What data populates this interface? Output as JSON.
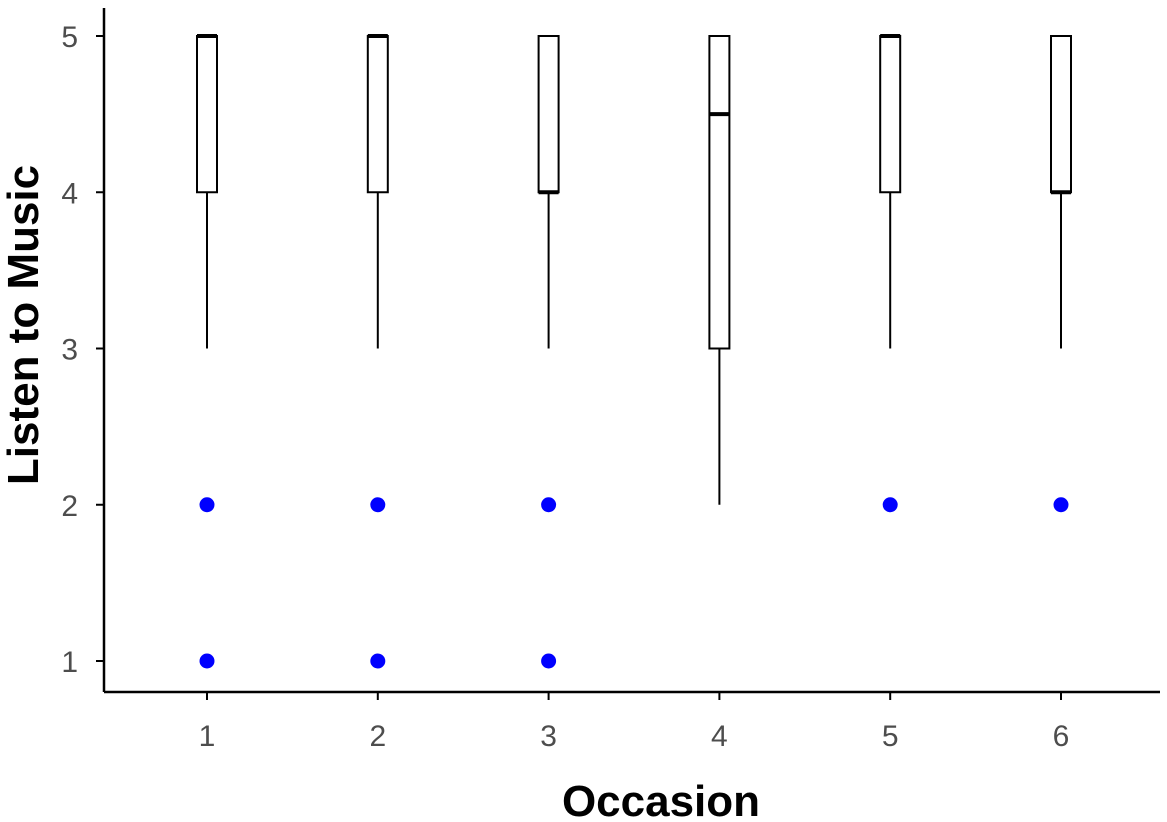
{
  "chart_data": {
    "type": "boxplot",
    "xlabel": "Occasion",
    "ylabel": "Listen to Music",
    "categories": [
      "1",
      "2",
      "3",
      "4",
      "5",
      "6"
    ],
    "y_ticks": [
      "1",
      "2",
      "3",
      "4",
      "5"
    ],
    "ylim": [
      0.8,
      5.2
    ],
    "grid": false,
    "legend": "none",
    "boxes": [
      {
        "category": "1",
        "min": 3,
        "q1": 4,
        "median": 5,
        "q3": 5,
        "max": 5
      },
      {
        "category": "2",
        "min": 3,
        "q1": 4,
        "median": 5,
        "q3": 5,
        "max": 5
      },
      {
        "category": "3",
        "min": 3,
        "q1": 4,
        "median": 4,
        "q3": 5,
        "max": 5
      },
      {
        "category": "4",
        "min": 2,
        "q1": 3,
        "median": 4.5,
        "q3": 5,
        "max": 5
      },
      {
        "category": "5",
        "min": 3,
        "q1": 4,
        "median": 5,
        "q3": 5,
        "max": 5
      },
      {
        "category": "6",
        "min": 3,
        "q1": 4,
        "median": 4,
        "q3": 5,
        "max": 5
      }
    ],
    "outliers": [
      {
        "category": "1",
        "y": 2
      },
      {
        "category": "1",
        "y": 1
      },
      {
        "category": "2",
        "y": 2
      },
      {
        "category": "2",
        "y": 1
      },
      {
        "category": "3",
        "y": 2
      },
      {
        "category": "3",
        "y": 1
      },
      {
        "category": "5",
        "y": 2
      },
      {
        "category": "6",
        "y": 2
      }
    ],
    "colors": {
      "box": "#000000",
      "outlier": "#0000ff",
      "tick_text": "#4d4d4d",
      "axis": "#000000"
    }
  }
}
